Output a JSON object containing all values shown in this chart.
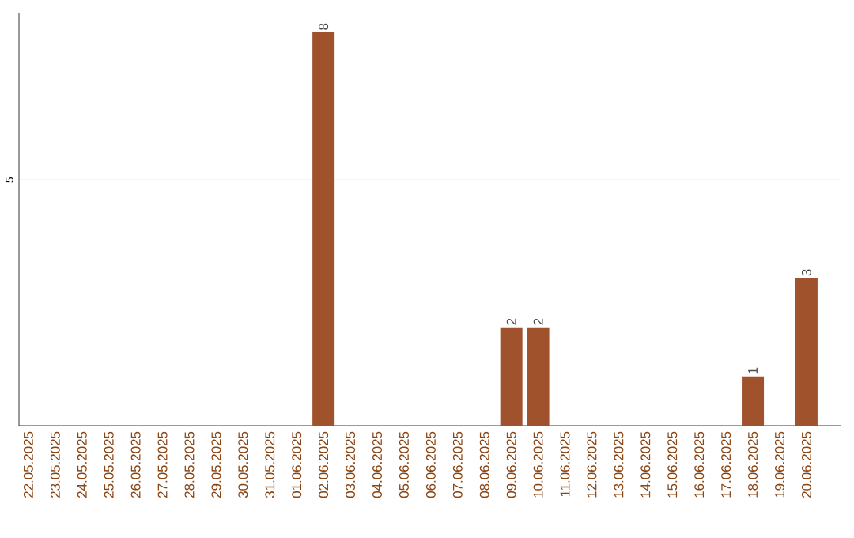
{
  "chart_data": {
    "type": "bar",
    "categories": [
      "22.05.2025",
      "23.05.2025",
      "24.05.2025",
      "25.05.2025",
      "26.05.2025",
      "27.05.2025",
      "28.05.2025",
      "29.05.2025",
      "30.05.2025",
      "31.05.2025",
      "01.06.2025",
      "02.06.2025",
      "03.06.2025",
      "04.06.2025",
      "05.06.2025",
      "06.06.2025",
      "07.06.2025",
      "08.06.2025",
      "09.06.2025",
      "10.06.2025",
      "11.06.2025",
      "12.06.2025",
      "13.06.2025",
      "14.06.2025",
      "15.06.2025",
      "16.06.2025",
      "17.06.2025",
      "18.06.2025",
      "19.06.2025",
      "20.06.2025"
    ],
    "values": [
      0,
      0,
      0,
      0,
      0,
      0,
      0,
      0,
      0,
      0,
      0,
      8,
      0,
      0,
      0,
      0,
      0,
      0,
      2,
      2,
      0,
      0,
      0,
      0,
      0,
      0,
      0,
      1,
      0,
      3
    ],
    "value_labels": [
      null,
      null,
      null,
      null,
      null,
      null,
      null,
      null,
      null,
      null,
      null,
      "8",
      null,
      null,
      null,
      null,
      null,
      null,
      "2",
      "2",
      null,
      null,
      null,
      null,
      null,
      null,
      null,
      "1",
      null,
      "3"
    ],
    "color": "#a0522d",
    "ylim": [
      0,
      8.4
    ],
    "yticks": [
      5
    ],
    "grid": "y"
  }
}
